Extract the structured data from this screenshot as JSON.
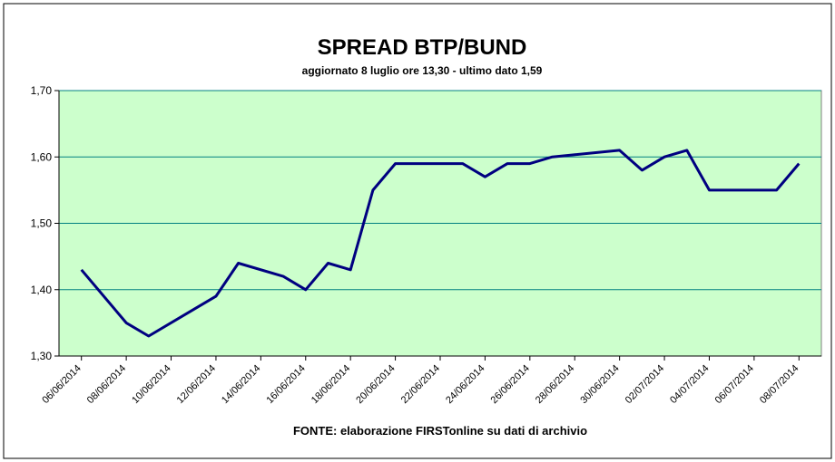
{
  "chart_data": {
    "type": "line",
    "title": "SPREAD BTP/BUND",
    "subtitle": "aggiornato 8 luglio ore 13,30 - ultimo dato 1,59",
    "source": "FONTE: elaborazione FIRSTonline su dati di archivio",
    "x": [
      "06/06/2014",
      "08/06/2014",
      "09/06/2014",
      "11/06/2014",
      "12/06/2014",
      "13/06/2014",
      "15/06/2014",
      "16/06/2014",
      "17/06/2014",
      "18/06/2014",
      "19/06/2014",
      "20/06/2014",
      "23/06/2014",
      "24/06/2014",
      "25/06/2014",
      "26/06/2014",
      "27/06/2014",
      "30/06/2014",
      "01/07/2014",
      "02/07/2014",
      "03/07/2014",
      "04/07/2014",
      "07/07/2014",
      "08/07/2014"
    ],
    "series": [
      {
        "name": "SPREAD BTP/BUND",
        "color": "#000080",
        "values": [
          1.43,
          1.35,
          1.33,
          1.37,
          1.39,
          1.44,
          1.42,
          1.4,
          1.44,
          1.43,
          1.55,
          1.59,
          1.59,
          1.57,
          1.59,
          1.59,
          1.6,
          1.61,
          1.58,
          1.6,
          1.61,
          1.55,
          1.55,
          1.59
        ]
      }
    ],
    "xlim": [
      "05/06/2014",
      "09/07/2014"
    ],
    "xticks": [
      "06/06/2014",
      "08/06/2014",
      "10/06/2014",
      "12/06/2014",
      "14/06/2014",
      "16/06/2014",
      "18/06/2014",
      "20/06/2014",
      "22/06/2014",
      "24/06/2014",
      "26/06/2014",
      "28/06/2014",
      "30/06/2014",
      "02/07/2014",
      "04/07/2014",
      "06/07/2014",
      "08/07/2014"
    ],
    "ylim": [
      1.3,
      1.7
    ],
    "yticks": [
      {
        "value": 1.3,
        "label": "1,30"
      },
      {
        "value": 1.4,
        "label": "1,40"
      },
      {
        "value": 1.5,
        "label": "1,50"
      },
      {
        "value": 1.6,
        "label": "1,60"
      },
      {
        "value": 1.7,
        "label": "1,70"
      }
    ],
    "grid": true,
    "plot_color": "#ccffcc",
    "grid_color": "#008080"
  }
}
